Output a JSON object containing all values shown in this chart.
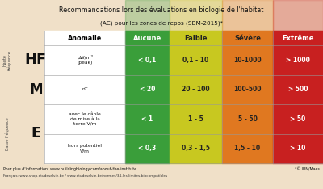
{
  "title_line1": "Recommandations lors des évaluations en biologie de l'habitat",
  "title_line2": "(AC) pour les zones de repos (SBM-2015)*",
  "col_headers": [
    "Anomalie",
    "Aucune",
    "Faible",
    "Sévère",
    "Extrême"
  ],
  "col_colors": [
    "#ffffff",
    "#3a9e3a",
    "#c8c820",
    "#e07820",
    "#c82020"
  ],
  "col_header_text_colors": [
    "#000000",
    "#ffffff",
    "#222222",
    "#222222",
    "#ffffff"
  ],
  "rows": [
    {
      "left_label": "HF",
      "unit": "μW/m²\n(peak)",
      "values": [
        "< 0,1",
        "0,1 - 10",
        "10-1000",
        "> 1000"
      ]
    },
    {
      "left_label": "M",
      "unit": "nT",
      "values": [
        "< 20",
        "20 - 100",
        "100-500",
        "> 500"
      ]
    },
    {
      "left_label": "E",
      "unit": "avec le câble\nde mise à la\nterre V/m",
      "values": [
        "< 1",
        "1 - 5",
        "5 - 50",
        "> 50"
      ]
    },
    {
      "left_label": "",
      "unit": "hors potentiel\nV/m",
      "values": [
        "< 0,3",
        "0,3 - 1,5",
        "1,5 - 10",
        "> 10"
      ]
    }
  ],
  "side_label_top": "Haute\nfréquence",
  "side_label_bottom": "Basse fréquence",
  "footer1": "Pour plus d'information: www.buildingbiology.com/about-the-institute",
  "footer2": "Français: www.shop.etudeselvie.be / www.etudeselvie.be/normes/34-les-limites-biocompatibles",
  "footer_right": "*© IBN/Maes",
  "bg_color": "#f0e0c8",
  "val_text_colors": [
    "#ffffff",
    "#222222",
    "#222222",
    "#ffffff"
  ]
}
